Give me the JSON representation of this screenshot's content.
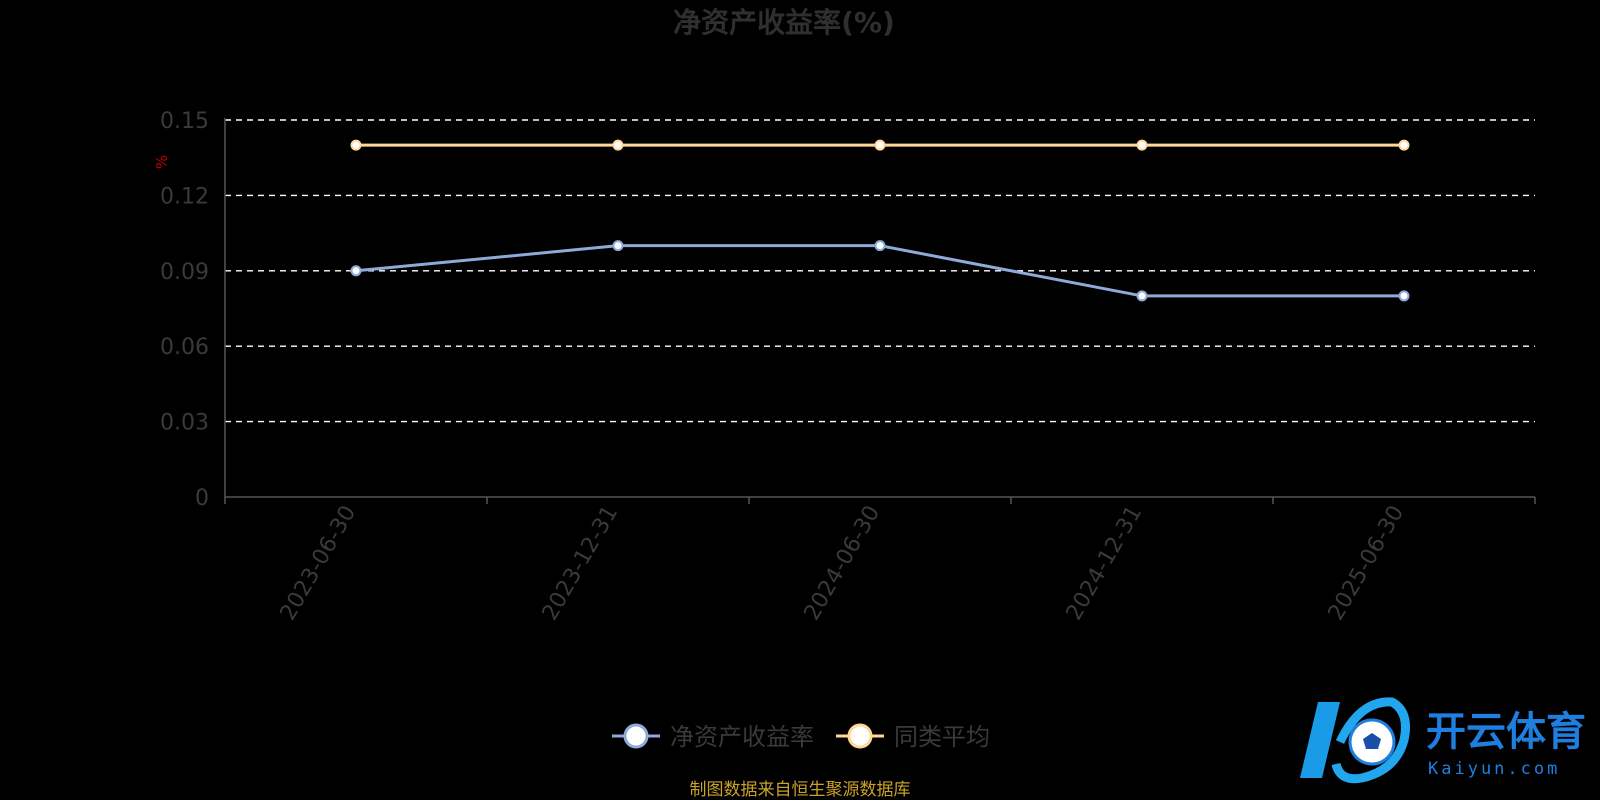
{
  "chart_data": {
    "type": "line",
    "title": "净资产收益率(%)",
    "ylabel": "%",
    "categories": [
      "2023-06-30",
      "2023-12-31",
      "2024-06-30",
      "2024-12-31",
      "2025-06-30"
    ],
    "ylim": [
      0,
      0.15
    ],
    "yticks": [
      "0",
      "0.03",
      "0.06",
      "0.09",
      "0.12",
      "0.15"
    ],
    "grid": true,
    "legend_position": "bottom-center",
    "series": [
      {
        "name": "净资产收益率",
        "values": [
          0.09,
          0.1,
          0.1,
          0.08,
          0.08
        ],
        "color": "#8eaadb"
      },
      {
        "name": "同类平均",
        "values": [
          0.14,
          0.14,
          0.14,
          0.14,
          0.14
        ],
        "color": "#ffd89a"
      }
    ]
  },
  "footer": {
    "source": "制图数据来自恒生聚源数据库"
  },
  "watermark": {
    "brand": "开云体育",
    "domain": "Kaiyun.com",
    "icon": "soccer-ball-k-logo"
  }
}
